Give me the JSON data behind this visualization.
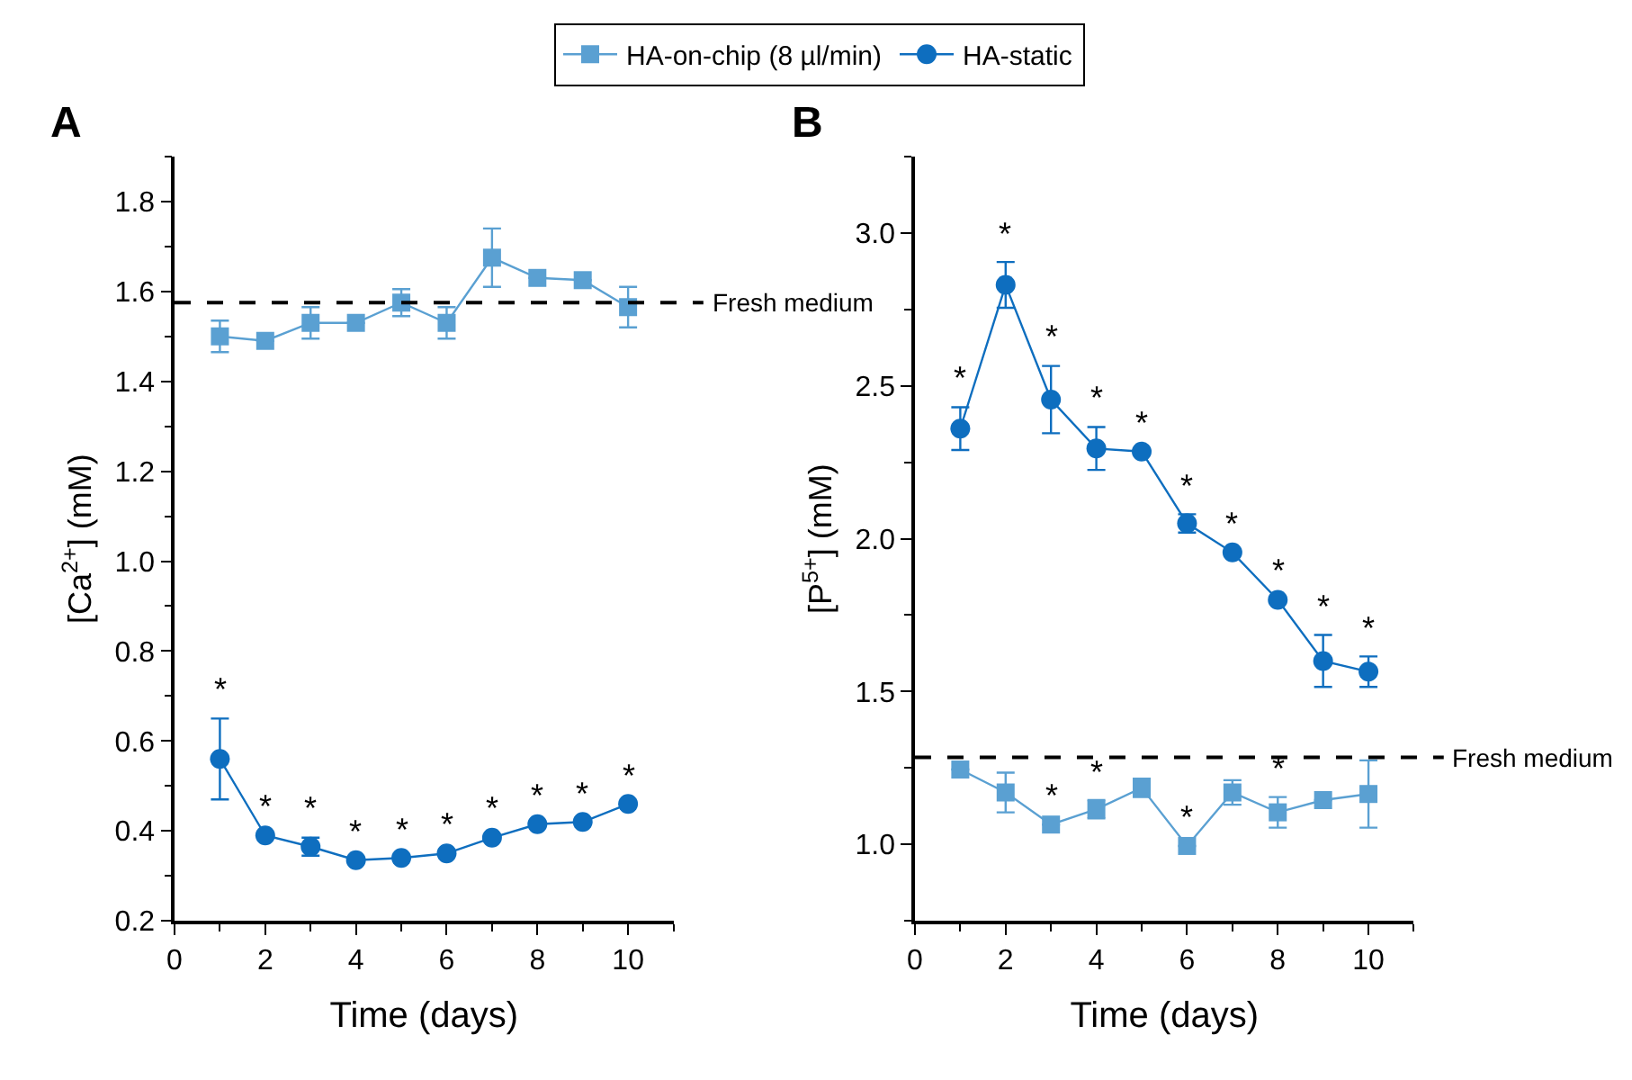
{
  "chart_data": [
    {
      "type": "line",
      "title": "A",
      "xlabel": "Time (days)",
      "ylabel": "[Ca$^{2+}$] (mM)",
      "x": [
        1,
        2,
        3,
        4,
        5,
        6,
        7,
        8,
        9,
        10
      ],
      "xlim": [
        0,
        11
      ],
      "xticks": [
        0,
        2,
        4,
        6,
        8,
        10
      ],
      "ylim": [
        0.2,
        1.9
      ],
      "yticks": [
        0.2,
        0.4,
        0.6,
        0.8,
        {
          "value": 1.0,
          "label": "1.0"
        },
        1.2,
        1.4,
        1.6,
        1.8
      ],
      "legend": "top",
      "line_style": "solid",
      "series": [
        {
          "name": "HA-on-chip (8 µl/min)",
          "color": "#5aa0d2",
          "marker": "square",
          "values": [
            1.5,
            1.49,
            1.53,
            1.53,
            1.575,
            1.53,
            1.675,
            1.63,
            1.625,
            1.565
          ],
          "errors": [
            0.035,
            null,
            0.035,
            null,
            0.03,
            0.035,
            0.065,
            null,
            null,
            0.045
          ]
        },
        {
          "name": "HA-static",
          "color": "#0e6ebf",
          "marker": "circle",
          "values": [
            0.56,
            0.39,
            0.365,
            0.335,
            0.34,
            0.35,
            0.385,
            0.415,
            0.42,
            0.46
          ],
          "errors": [
            0.09,
            null,
            0.02,
            null,
            null,
            null,
            null,
            null,
            null,
            null
          ]
        }
      ],
      "ref_lines": [
        {
          "axis": "y",
          "value": 1.575,
          "label": "Fresh medium",
          "color": "#000000",
          "line_style": "dashed"
        }
      ],
      "annotations": [
        {
          "text": "*",
          "x": 1,
          "y": 0.65
        },
        {
          "text": "*",
          "x": 2,
          "y": 0.39
        },
        {
          "text": "*",
          "x": 3,
          "y": 0.385
        },
        {
          "text": "*",
          "x": 4,
          "y": 0.335
        },
        {
          "text": "*",
          "x": 5,
          "y": 0.34
        },
        {
          "text": "*",
          "x": 6,
          "y": 0.35
        },
        {
          "text": "*",
          "x": 7,
          "y": 0.385
        },
        {
          "text": "*",
          "x": 8,
          "y": 0.415
        },
        {
          "text": "*",
          "x": 9,
          "y": 0.42
        },
        {
          "text": "*",
          "x": 10,
          "y": 0.46
        }
      ]
    },
    {
      "type": "line",
      "title": "B",
      "xlabel": "Time (days)",
      "ylabel": "[P$^{5+}$] (mM)",
      "x": [
        1,
        2,
        3,
        4,
        5,
        6,
        7,
        8,
        9,
        10
      ],
      "xlim": [
        0,
        11
      ],
      "xticks": [
        0,
        2,
        4,
        6,
        8,
        10
      ],
      "ylim": [
        0.75,
        3.25
      ],
      "yticks": [
        {
          "value": 1.0,
          "label": "1.0"
        },
        1.5,
        {
          "value": 2.0,
          "label": "2.0"
        },
        2.5,
        {
          "value": 3.0,
          "label": "3.0"
        }
      ],
      "line_style": "solid",
      "series": [
        {
          "color": "#5aa0d2",
          "marker": "square",
          "values": [
            1.245,
            1.17,
            1.065,
            1.115,
            1.185,
            0.995,
            1.17,
            1.105,
            1.145,
            1.165
          ],
          "errors": [
            null,
            0.065,
            null,
            0.03,
            0.03,
            null,
            0.04,
            0.05,
            null,
            0.11
          ]
        },
        {
          "color": "#0e6ebf",
          "marker": "circle",
          "values": [
            2.36,
            2.83,
            2.455,
            2.295,
            2.285,
            2.05,
            1.955,
            1.8,
            1.6,
            1.565
          ],
          "errors": [
            0.07,
            0.075,
            0.11,
            0.07,
            null,
            0.03,
            null,
            null,
            0.085,
            0.05
          ]
        }
      ],
      "ref_lines": [
        {
          "axis": "y",
          "value": 1.285,
          "label": "Fresh medium",
          "color": "#000000",
          "line_style": "dashed"
        }
      ],
      "annotations": [
        {
          "text": "*",
          "x": 1,
          "y": 2.43
        },
        {
          "text": "*",
          "x": 2,
          "y": 2.905
        },
        {
          "text": "*",
          "x": 3,
          "y": 2.565
        },
        {
          "text": "*",
          "x": 4,
          "y": 2.365
        },
        {
          "text": "*",
          "x": 5,
          "y": 2.285
        },
        {
          "text": "*",
          "x": 6,
          "y": 2.08
        },
        {
          "text": "*",
          "x": 7,
          "y": 1.955
        },
        {
          "text": "*",
          "x": 8,
          "y": 1.8
        },
        {
          "text": "*",
          "x": 9,
          "y": 1.685
        },
        {
          "text": "*",
          "x": 10,
          "y": 1.615
        },
        {
          "text": "*",
          "x": 3,
          "y": 1.065
        },
        {
          "text": "*",
          "x": 4,
          "y": 1.145
        },
        {
          "text": "*",
          "x": 6,
          "y": 0.995
        },
        {
          "text": "*",
          "x": 8,
          "y": 1.155
        }
      ]
    }
  ]
}
